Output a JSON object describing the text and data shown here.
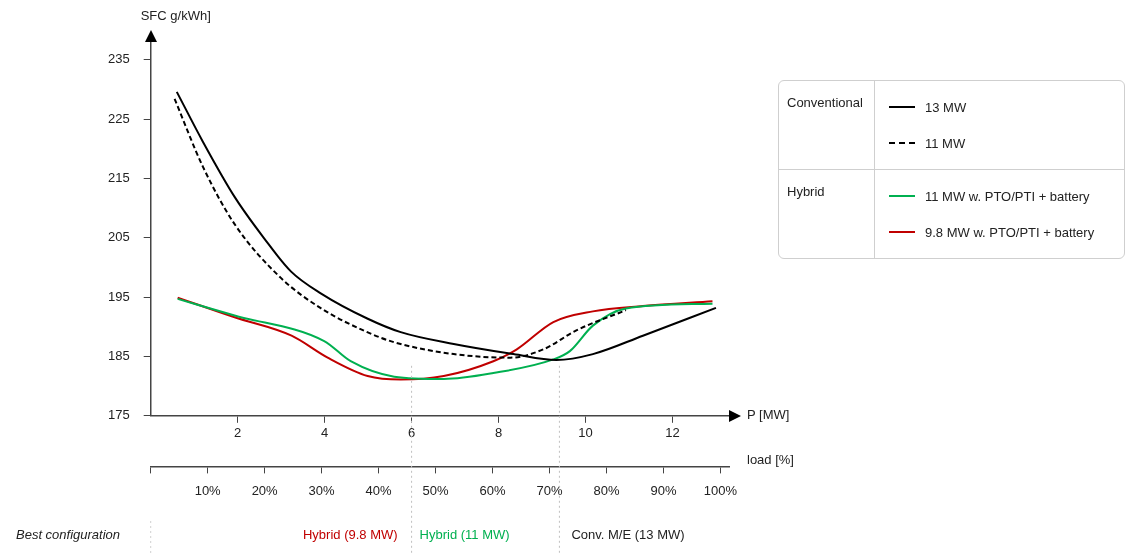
{
  "chart_data": {
    "type": "line",
    "ylabel": "SFC g/kWh]",
    "xlabel": "P [MW]",
    "x2label": "load [%]",
    "xlim": [
      0,
      13.3
    ],
    "xticks": [
      2,
      4,
      6,
      8,
      10,
      12
    ],
    "x2lim": [
      0,
      101.5
    ],
    "x2ticks": [
      {
        "value": 0,
        "label": null
      },
      {
        "value": 10,
        "label": "10%"
      },
      {
        "value": 20,
        "label": "20%"
      },
      {
        "value": 30,
        "label": "30%"
      },
      {
        "value": 40,
        "label": "40%"
      },
      {
        "value": 50,
        "label": "50%"
      },
      {
        "value": 60,
        "label": "60%"
      },
      {
        "value": 70,
        "label": "70%"
      },
      {
        "value": 80,
        "label": "80%"
      },
      {
        "value": 90,
        "label": "90%"
      },
      {
        "value": 100,
        "label": "100%"
      }
    ],
    "ylim": [
      175,
      238
    ],
    "yticks": [
      175,
      185,
      195,
      205,
      215,
      225,
      235
    ],
    "grid": false,
    "legend": "right",
    "marker": "none",
    "series": [
      {
        "name": "13 MW",
        "color": "#000000",
        "line_style": "solid",
        "x": [
          0.6,
          1.2,
          1.93,
          2.6,
          3.23,
          3.92,
          4.98,
          5.75,
          6.97,
          8.34,
          9.33,
          10.17,
          11.32,
          13.0
        ],
        "values": [
          229.6,
          221.2,
          211.9,
          205.0,
          199.3,
          195.6,
          191.4,
          189.1,
          187.1,
          185.4,
          184.4,
          185.4,
          188.5,
          193.2
        ]
      },
      {
        "name": "11 MW",
        "color": "#000000",
        "line_style": "dashed",
        "x": [
          0.55,
          1.2,
          1.93,
          3.0,
          3.92,
          4.98,
          5.6,
          6.97,
          8.27,
          9.03,
          9.79,
          10.93
        ],
        "values": [
          228.4,
          217.0,
          207.3,
          198.2,
          193.1,
          189.1,
          187.4,
          185.4,
          184.8,
          186.2,
          189.4,
          192.8
        ]
      },
      {
        "name": "11 MW w. PTO/PTI + battery",
        "color": "#00b050",
        "line_style": "solid",
        "x": [
          0.62,
          1.93,
          3.99,
          4.6,
          5.6,
          6.74,
          7.88,
          9.26,
          9.64,
          10.17,
          10.93,
          12.92
        ],
        "values": [
          194.7,
          191.9,
          187.6,
          184.2,
          181.6,
          181.2,
          182.2,
          184.5,
          185.9,
          190.2,
          193.1,
          193.9
        ]
      },
      {
        "name": "9.8 MW w. PTO/PTI + battery",
        "color": "#c00000",
        "line_style": "solid",
        "x": [
          0.62,
          1.93,
          3.24,
          4.07,
          4.99,
          5.75,
          6.74,
          7.88,
          8.42,
          9.26,
          10.17,
          11.32,
          12.92
        ],
        "values": [
          194.9,
          191.6,
          188.5,
          184.8,
          181.7,
          181.1,
          181.7,
          184.2,
          186.2,
          190.8,
          192.6,
          193.5,
          194.3
        ]
      }
    ],
    "ref_lines": [
      {
        "axis": "x",
        "value": 6.0,
        "label": null,
        "color": "#bfbfbf",
        "line_style": "dotted"
      },
      {
        "axis": "x",
        "value": 9.4,
        "label": null,
        "color": "#bfbfbf",
        "line_style": "dotted"
      }
    ],
    "annotations": [
      "Best configuration",
      "Hybrid (9.8 MW)",
      "Hybrid (11 MW)",
      "Conv. M/E (13 MW)",
      "Conventional",
      "Hybrid"
    ]
  }
}
